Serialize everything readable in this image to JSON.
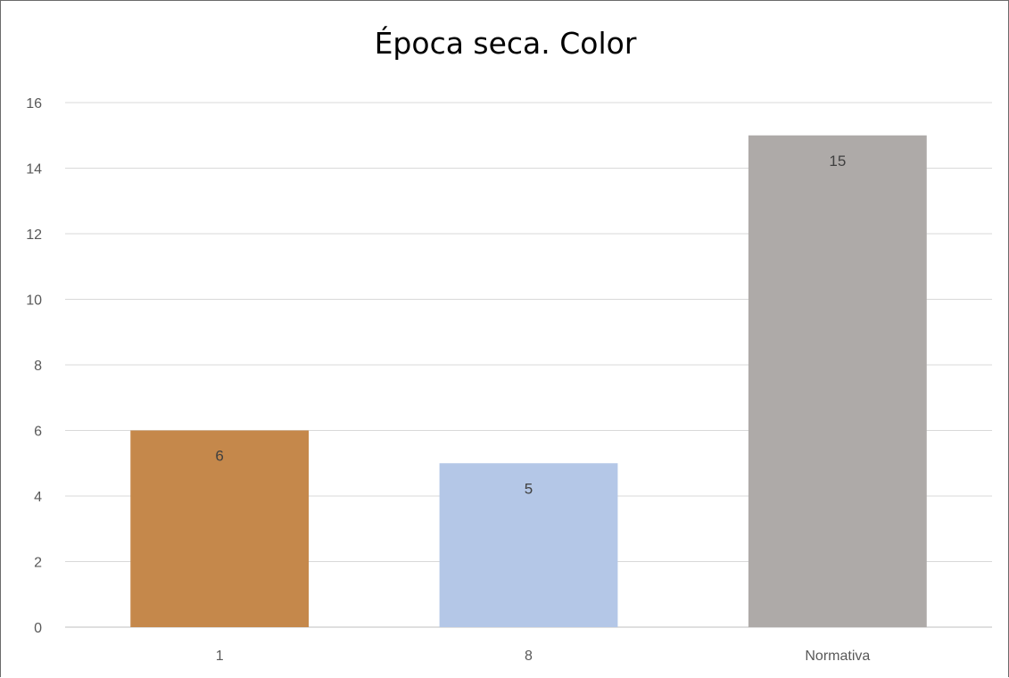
{
  "chart_data": {
    "type": "bar",
    "title": "Época seca. Color",
    "categories": [
      "1",
      "8",
      "Normativa"
    ],
    "series": [
      {
        "values": [
          6,
          5,
          15
        ],
        "colors": [
          "#c5884b",
          "#b4c7e7",
          "#aeaaa8"
        ]
      }
    ],
    "data_labels": [
      "6",
      "5",
      "15"
    ],
    "yticks": [
      "0",
      "2",
      "4",
      "6",
      "8",
      "10",
      "12",
      "14",
      "16"
    ],
    "ylim": [
      0,
      16
    ],
    "xlabel": "",
    "ylabel": "",
    "grid": true,
    "legend": "none"
  }
}
